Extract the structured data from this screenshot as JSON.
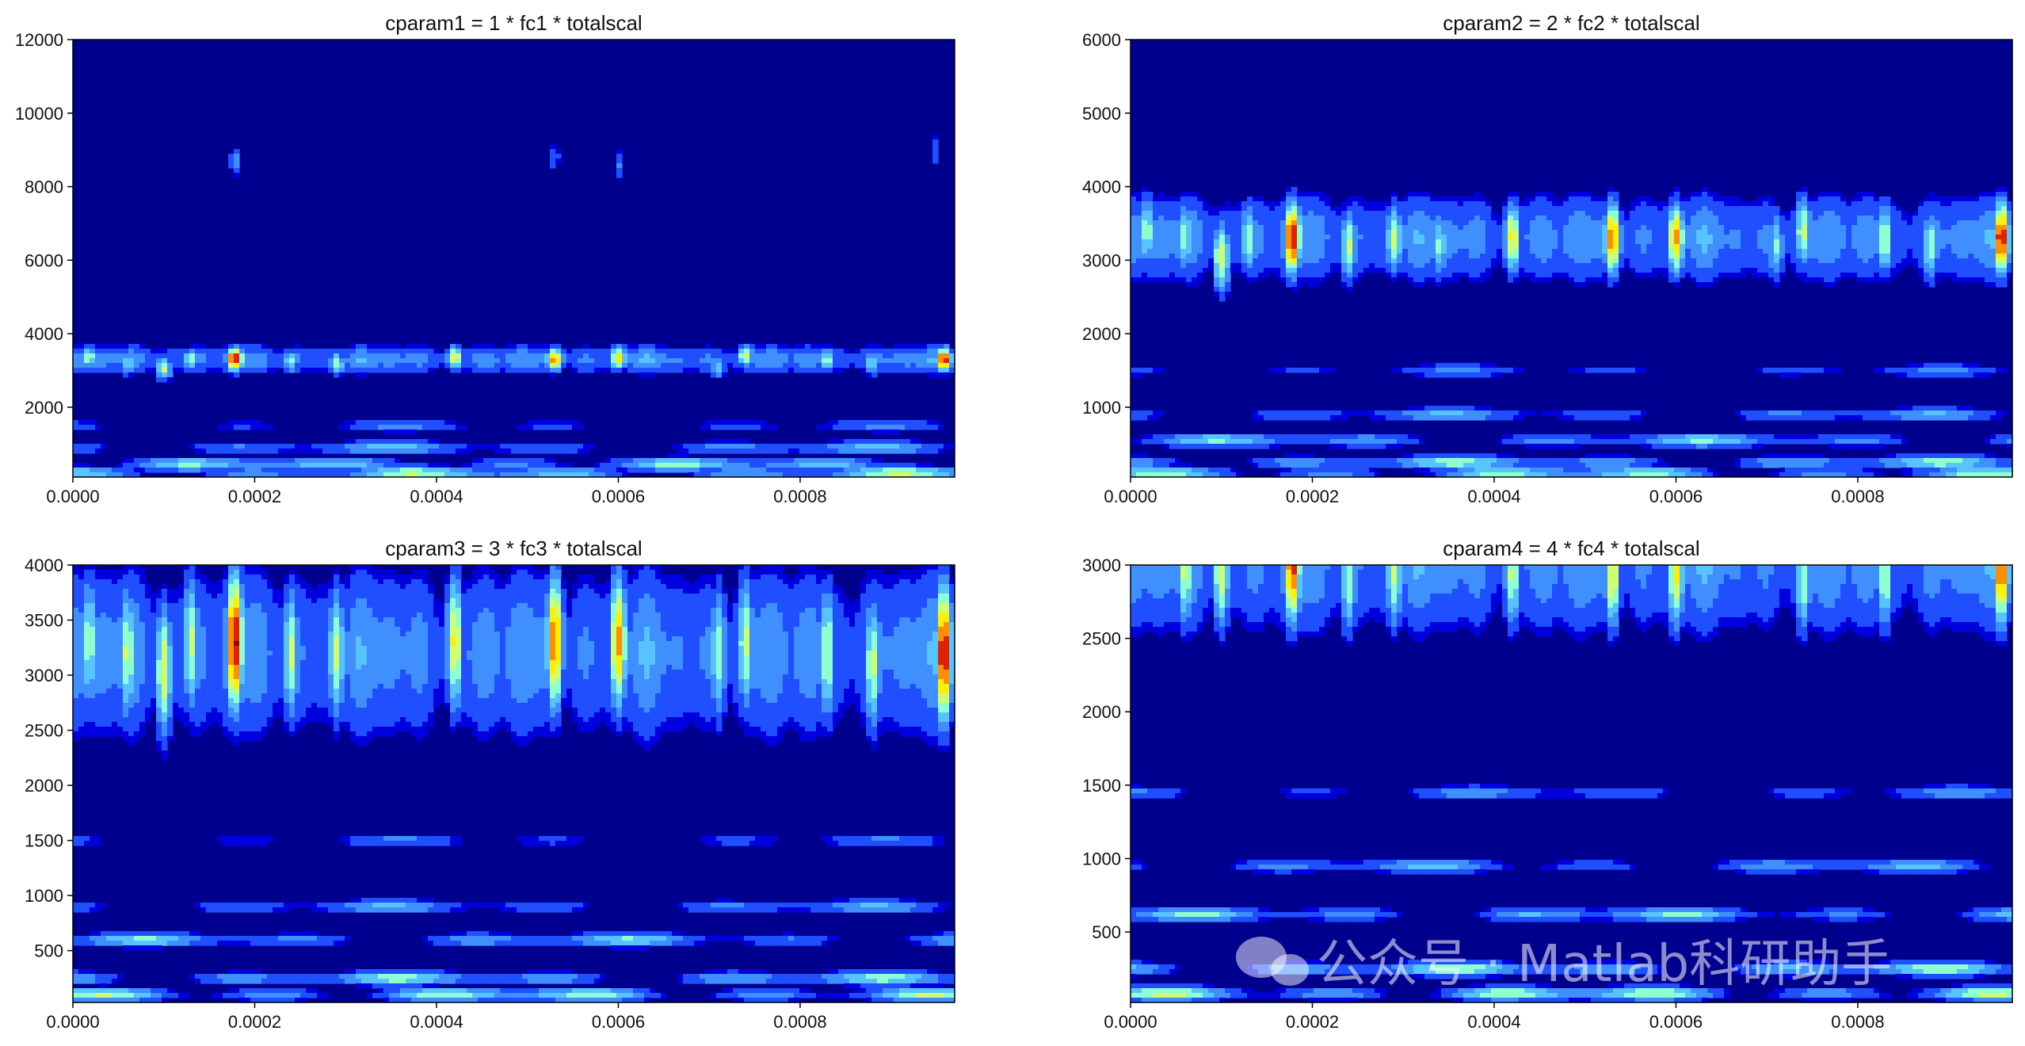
{
  "chart_data": [
    {
      "type": "heatmap",
      "subtype": "filled-contour scalogram",
      "title": "cparam1 = 1 * fc1 * totalscal",
      "xticks": [
        "0.0000",
        "0.0002",
        "0.0004",
        "0.0006",
        "0.0008"
      ],
      "yticks": [
        "2000",
        "4000",
        "6000",
        "8000",
        "10000",
        "12000"
      ],
      "xlim": [
        0,
        0.00097
      ],
      "ylim": [
        100,
        12000
      ],
      "colormap": "jet",
      "band_center": 3300,
      "band_halfwidth": 450,
      "band_gain": 1.0,
      "low_rows": [
        [
          1500,
          0.32
        ],
        [
          900,
          0.45
        ],
        [
          450,
          0.55
        ],
        [
          200,
          0.6
        ]
      ],
      "hotspots": [
        {
          "x": 1.8e-05,
          "y": 3350,
          "v": 0.55
        },
        {
          "x": 6e-05,
          "y": 3200,
          "v": 0.5
        },
        {
          "x": 0.0001,
          "y": 3050,
          "v": 0.6
        },
        {
          "x": 0.00013,
          "y": 3300,
          "v": 0.55
        },
        {
          "x": 0.000178,
          "y": 3300,
          "v": 0.98
        },
        {
          "x": 0.00024,
          "y": 3250,
          "v": 0.5
        },
        {
          "x": 0.00029,
          "y": 3200,
          "v": 0.55
        },
        {
          "x": 0.00042,
          "y": 3350,
          "v": 0.7
        },
        {
          "x": 0.00053,
          "y": 3300,
          "v": 0.82
        },
        {
          "x": 0.0006,
          "y": 3350,
          "v": 0.75
        },
        {
          "x": 0.00071,
          "y": 3100,
          "v": 0.45
        },
        {
          "x": 0.00074,
          "y": 3400,
          "v": 0.6
        },
        {
          "x": 0.00083,
          "y": 3300,
          "v": 0.55
        },
        {
          "x": 0.00088,
          "y": 3200,
          "v": 0.5
        },
        {
          "x": 0.000958,
          "y": 3300,
          "v": 0.95
        }
      ],
      "spikes": [
        {
          "x": 0.000178,
          "y": 8700,
          "v": 0.35
        },
        {
          "x": 0.00053,
          "y": 8800,
          "v": 0.3
        },
        {
          "x": 0.0006,
          "y": 8600,
          "v": 0.3
        },
        {
          "x": 0.00095,
          "y": 9000,
          "v": 0.3
        }
      ]
    },
    {
      "type": "heatmap",
      "subtype": "filled-contour scalogram",
      "title": "cparam2 = 2 * fc2 * totalscal",
      "xticks": [
        "0.0000",
        "0.0002",
        "0.0004",
        "0.0006",
        "0.0008"
      ],
      "yticks": [
        "1000",
        "2000",
        "3000",
        "4000",
        "5000",
        "6000"
      ],
      "xlim": [
        0,
        0.00097
      ],
      "ylim": [
        50,
        6000
      ],
      "colormap": "jet",
      "band_center": 3300,
      "band_halfwidth": 700,
      "band_gain": 1.0,
      "low_rows": [
        [
          1500,
          0.32
        ],
        [
          900,
          0.42
        ],
        [
          550,
          0.5
        ],
        [
          250,
          0.55
        ],
        [
          100,
          0.6
        ]
      ],
      "hotspots": [
        {
          "x": 1.8e-05,
          "y": 3400,
          "v": 0.55
        },
        {
          "x": 6e-05,
          "y": 3300,
          "v": 0.55
        },
        {
          "x": 0.0001,
          "y": 3050,
          "v": 0.65
        },
        {
          "x": 0.00013,
          "y": 3300,
          "v": 0.55
        },
        {
          "x": 0.000178,
          "y": 3300,
          "v": 0.98
        },
        {
          "x": 0.00024,
          "y": 3200,
          "v": 0.6
        },
        {
          "x": 0.00029,
          "y": 3300,
          "v": 0.6
        },
        {
          "x": 0.00034,
          "y": 3200,
          "v": 0.5
        },
        {
          "x": 0.00042,
          "y": 3300,
          "v": 0.7
        },
        {
          "x": 0.00053,
          "y": 3300,
          "v": 0.85
        },
        {
          "x": 0.0006,
          "y": 3300,
          "v": 0.8
        },
        {
          "x": 0.00071,
          "y": 3200,
          "v": 0.5
        },
        {
          "x": 0.00074,
          "y": 3400,
          "v": 0.6
        },
        {
          "x": 0.00083,
          "y": 3300,
          "v": 0.6
        },
        {
          "x": 0.00088,
          "y": 3200,
          "v": 0.55
        },
        {
          "x": 0.000958,
          "y": 3300,
          "v": 0.95
        }
      ],
      "spikes": []
    },
    {
      "type": "heatmap",
      "subtype": "filled-contour scalogram",
      "title": "cparam3 = 3 * fc3 * totalscal",
      "xticks": [
        "0.0000",
        "0.0002",
        "0.0004",
        "0.0006",
        "0.0008"
      ],
      "yticks": [
        "500",
        "1000",
        "1500",
        "2000",
        "2500",
        "3000",
        "3500",
        "4000"
      ],
      "xlim": [
        0,
        0.00097
      ],
      "ylim": [
        30,
        4000
      ],
      "colormap": "jet",
      "band_center": 3200,
      "band_halfwidth": 900,
      "band_gain": 1.0,
      "low_rows": [
        [
          1500,
          0.32
        ],
        [
          900,
          0.42
        ],
        [
          600,
          0.5
        ],
        [
          250,
          0.55
        ],
        [
          100,
          0.62
        ]
      ],
      "hotspots": [
        {
          "x": 1.8e-05,
          "y": 3300,
          "v": 0.55
        },
        {
          "x": 6e-05,
          "y": 3200,
          "v": 0.6
        },
        {
          "x": 0.0001,
          "y": 3050,
          "v": 0.65
        },
        {
          "x": 0.00013,
          "y": 3300,
          "v": 0.6
        },
        {
          "x": 0.000178,
          "y": 3300,
          "v": 0.99
        },
        {
          "x": 0.00024,
          "y": 3200,
          "v": 0.6
        },
        {
          "x": 0.00029,
          "y": 3200,
          "v": 0.6
        },
        {
          "x": 0.00042,
          "y": 3300,
          "v": 0.7
        },
        {
          "x": 0.00053,
          "y": 3300,
          "v": 0.85
        },
        {
          "x": 0.0006,
          "y": 3300,
          "v": 0.8
        },
        {
          "x": 0.00071,
          "y": 3200,
          "v": 0.55
        },
        {
          "x": 0.00074,
          "y": 3300,
          "v": 0.6
        },
        {
          "x": 0.00083,
          "y": 3200,
          "v": 0.6
        },
        {
          "x": 0.00088,
          "y": 3100,
          "v": 0.6
        },
        {
          "x": 0.000958,
          "y": 3200,
          "v": 0.97
        }
      ],
      "spikes": []
    },
    {
      "type": "heatmap",
      "subtype": "filled-contour scalogram",
      "title": "cparam4 = 4 * fc4 * totalscal",
      "xticks": [
        "0.0000",
        "0.0002",
        "0.0004",
        "0.0006",
        "0.0008"
      ],
      "yticks": [
        "500",
        "1000",
        "1500",
        "2000",
        "2500",
        "3000"
      ],
      "xlim": [
        0,
        0.00097
      ],
      "ylim": [
        20,
        3000
      ],
      "colormap": "jet",
      "band_center": 3000,
      "band_halfwidth": 550,
      "band_gain": 1.0,
      "low_rows": [
        [
          1450,
          0.38
        ],
        [
          950,
          0.45
        ],
        [
          620,
          0.52
        ],
        [
          250,
          0.58
        ],
        [
          80,
          0.66
        ]
      ],
      "hotspots": [
        {
          "x": 6e-05,
          "y": 2950,
          "v": 0.6
        },
        {
          "x": 0.0001,
          "y": 2950,
          "v": 0.65
        },
        {
          "x": 0.000178,
          "y": 2980,
          "v": 0.9
        },
        {
          "x": 0.00024,
          "y": 2900,
          "v": 0.55
        },
        {
          "x": 0.00029,
          "y": 2950,
          "v": 0.6
        },
        {
          "x": 0.00042,
          "y": 2950,
          "v": 0.6
        },
        {
          "x": 0.00053,
          "y": 2950,
          "v": 0.7
        },
        {
          "x": 0.0006,
          "y": 2950,
          "v": 0.7
        },
        {
          "x": 0.00074,
          "y": 2900,
          "v": 0.55
        },
        {
          "x": 0.00083,
          "y": 2950,
          "v": 0.6
        },
        {
          "x": 0.000958,
          "y": 2980,
          "v": 0.9
        }
      ],
      "spikes": []
    }
  ],
  "colormap_stops": [
    "#00008f",
    "#0000df",
    "#1f4fff",
    "#3f8fff",
    "#57c3ff",
    "#8fffcf",
    "#cfff6f",
    "#ffef00",
    "#ff8f00",
    "#e32000",
    "#8f0000"
  ],
  "watermark": "公众号 · Matlab科研助手"
}
